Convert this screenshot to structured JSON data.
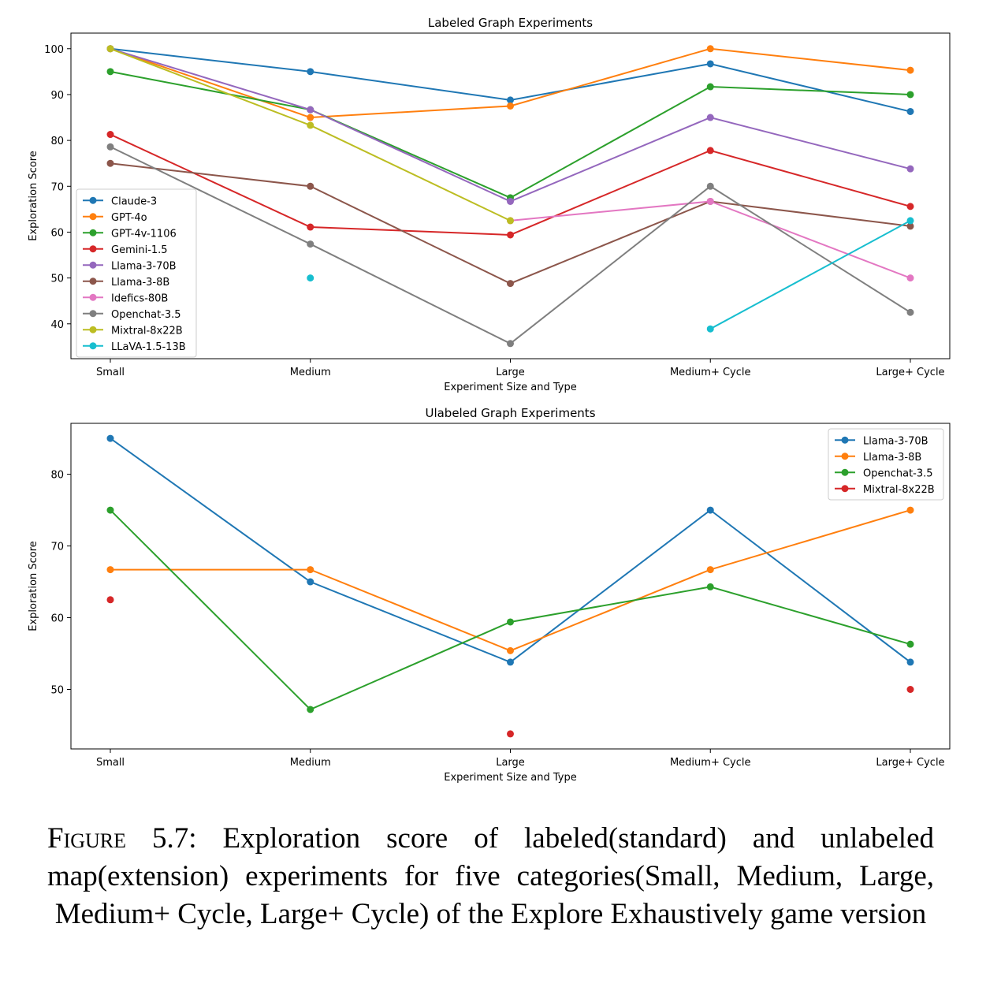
{
  "chart_data": [
    {
      "type": "line",
      "title": "Labeled Graph Experiments",
      "xlabel": "Experiment Size and Type",
      "ylabel": "Exploration Score",
      "categories": [
        "Small",
        "Medium",
        "Large",
        "Medium+ Cycle",
        "Large+ Cycle"
      ],
      "ylim": [
        32.4,
        103.4
      ],
      "yticks": [
        40,
        50,
        60,
        70,
        80,
        90,
        100
      ],
      "legend_position": "center-left",
      "grid": false,
      "series": [
        {
          "name": "Claude-3",
          "color": "#1f77b4",
          "values": [
            100,
            95,
            88.8,
            96.7,
            86.3
          ]
        },
        {
          "name": "GPT-4o",
          "color": "#ff7f0e",
          "values": [
            100,
            85,
            87.5,
            100,
            95.3
          ]
        },
        {
          "name": "GPT-4v-1106",
          "color": "#2ca02c",
          "values": [
            95,
            86.7,
            67.5,
            91.7,
            90
          ]
        },
        {
          "name": "Gemini-1.5",
          "color": "#d62728",
          "values": [
            81.3,
            61.1,
            59.4,
            77.8,
            65.6
          ]
        },
        {
          "name": "Llama-3-70B",
          "color": "#9467bd",
          "values": [
            100,
            86.7,
            66.7,
            85,
            73.8
          ]
        },
        {
          "name": "Llama-3-8B",
          "color": "#8c564b",
          "values": [
            75,
            70,
            48.8,
            66.7,
            61.3
          ]
        },
        {
          "name": "Idefics-80B",
          "color": "#e377c2",
          "values": [
            null,
            null,
            62.5,
            66.7,
            50
          ]
        },
        {
          "name": "Openchat-3.5",
          "color": "#7f7f7f",
          "values": [
            78.6,
            57.4,
            35.7,
            70,
            42.5
          ]
        },
        {
          "name": "Mixtral-8x22B",
          "color": "#bcbd22",
          "values": [
            100,
            83.3,
            62.5,
            null,
            null
          ]
        },
        {
          "name": "LLaVA-1.5-13B",
          "color": "#17becf",
          "values": [
            null,
            50,
            null,
            38.9,
            62.5
          ]
        }
      ]
    },
    {
      "type": "line",
      "title": "Ulabeled Graph Experiments",
      "xlabel": "Experiment Size and Type",
      "ylabel": "Exploration Score",
      "categories": [
        "Small",
        "Medium",
        "Large",
        "Medium+ Cycle",
        "Large+ Cycle"
      ],
      "ylim": [
        41.7,
        87.1
      ],
      "yticks": [
        50,
        60,
        70,
        80
      ],
      "legend_position": "top-right",
      "grid": false,
      "series": [
        {
          "name": "Llama-3-70B",
          "color": "#1f77b4",
          "values": [
            85,
            65,
            53.8,
            75,
            53.8
          ]
        },
        {
          "name": "Llama-3-8B",
          "color": "#ff7f0e",
          "values": [
            66.7,
            66.7,
            55.4,
            66.7,
            75
          ]
        },
        {
          "name": "Openchat-3.5",
          "color": "#2ca02c",
          "values": [
            75,
            47.2,
            59.4,
            64.3,
            56.3
          ]
        },
        {
          "name": "Mixtral-8x22B",
          "color": "#d62728",
          "values": [
            62.5,
            null,
            43.8,
            null,
            50
          ]
        }
      ]
    }
  ],
  "caption": {
    "label": "Figure 5.7:",
    "text": "Exploration score of labeled(standard) and unlabeled map(extension) experiments for five categories(Small, Medium, Large, Medium+ Cycle, Large+ Cycle) of the Explore Exhaustively game version"
  }
}
